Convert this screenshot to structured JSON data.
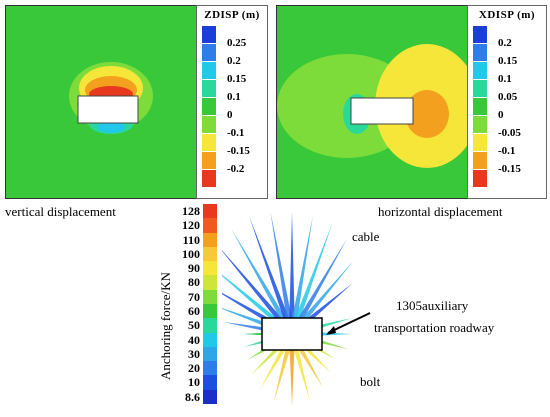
{
  "panels": {
    "z": {
      "title": "ZDISP (m)",
      "ticks": [
        "0.25",
        "0.2",
        "0.15",
        "0.1",
        "0",
        "-0.1",
        "-0.15",
        "-0.2"
      ],
      "colors": [
        "#1a3fd8",
        "#2f7de8",
        "#22c8e8",
        "#2ad89a",
        "#38c83a",
        "#7edc3a",
        "#f6e63a",
        "#f4a01f",
        "#e8391f"
      ],
      "caption": "vertical displacement"
    },
    "x": {
      "title": "XDISP (m)",
      "ticks": [
        "0.2",
        "0.15",
        "0.1",
        "0.05",
        "0",
        "-0.05",
        "-0.1",
        "-0.15"
      ],
      "colors": [
        "#1a3fd8",
        "#2f7de8",
        "#22c8e8",
        "#2ad89a",
        "#38c83a",
        "#7edc3a",
        "#f6e63a",
        "#f4a01f",
        "#e8391f"
      ],
      "caption": "horizontal displacement"
    }
  },
  "anchoring": {
    "axis_label": "Anchoring force/KN",
    "ticks": [
      "128",
      "120",
      "110",
      "100",
      "90",
      "80",
      "70",
      "60",
      "50",
      "40",
      "30",
      "20",
      "10",
      "8.6"
    ],
    "colors": [
      "#e8391f",
      "#f05a22",
      "#f4a01f",
      "#f6c83a",
      "#f6e63a",
      "#cfe53a",
      "#7edc3a",
      "#38c83a",
      "#2ad89a",
      "#22c8e8",
      "#2fa6e8",
      "#2f7de8",
      "#1a4fe0",
      "#1a2fc8"
    ]
  },
  "labels": {
    "cable": "cable",
    "roadway_line1": "1305auxiliary",
    "roadway_line2": "transportation roadway",
    "bolt": "bolt"
  }
}
